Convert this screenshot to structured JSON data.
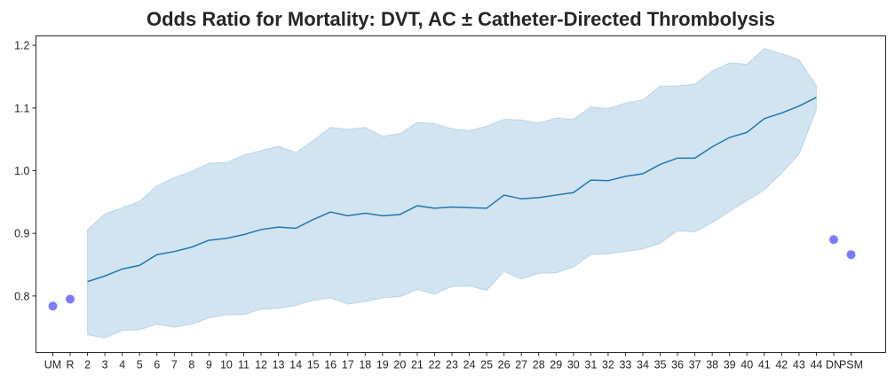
{
  "chart_data": {
    "type": "line",
    "title": "Odds Ratio for Mortality: DVT, AC ± Catheter-Directed Thrombolysis",
    "xlabel": "",
    "ylabel": "",
    "categories": [
      "UM",
      "R",
      "2",
      "3",
      "4",
      "5",
      "6",
      "7",
      "8",
      "9",
      "10",
      "11",
      "12",
      "13",
      "14",
      "15",
      "16",
      "17",
      "18",
      "19",
      "20",
      "21",
      "22",
      "23",
      "24",
      "25",
      "26",
      "27",
      "28",
      "29",
      "30",
      "31",
      "32",
      "33",
      "34",
      "35",
      "36",
      "37",
      "38",
      "39",
      "40",
      "41",
      "42",
      "43",
      "44",
      "DN",
      "PSM"
    ],
    "ylim": [
      0.71,
      1.215
    ],
    "yticks": [
      0.8,
      0.9,
      1.0,
      1.1,
      1.2
    ],
    "ytick_labels": [
      "0.8",
      "0.9",
      "1.0",
      "1.1",
      "1.2"
    ],
    "grid": false,
    "series": [
      {
        "kind": "line_with_band",
        "x": [
          "2",
          "3",
          "4",
          "5",
          "6",
          "7",
          "8",
          "9",
          "10",
          "11",
          "12",
          "13",
          "14",
          "15",
          "16",
          "17",
          "18",
          "19",
          "20",
          "21",
          "22",
          "23",
          "24",
          "25",
          "26",
          "27",
          "28",
          "29",
          "30",
          "31",
          "32",
          "33",
          "34",
          "35",
          "36",
          "37",
          "38",
          "39",
          "40",
          "41",
          "42",
          "43",
          "44"
        ],
        "values": [
          0.823,
          0.832,
          0.843,
          0.849,
          0.866,
          0.871,
          0.878,
          0.889,
          0.892,
          0.898,
          0.906,
          0.91,
          0.908,
          0.922,
          0.934,
          0.928,
          0.932,
          0.928,
          0.93,
          0.944,
          0.94,
          0.942,
          0.941,
          0.94,
          0.961,
          0.955,
          0.957,
          0.961,
          0.965,
          0.985,
          0.984,
          0.991,
          0.995,
          1.01,
          1.02,
          1.02,
          1.038,
          1.053,
          1.061,
          1.083,
          1.092,
          1.103,
          1.117
        ],
        "lower": [
          0.738,
          0.733,
          0.745,
          0.746,
          0.755,
          0.75,
          0.755,
          0.765,
          0.77,
          0.77,
          0.779,
          0.78,
          0.785,
          0.793,
          0.797,
          0.787,
          0.791,
          0.797,
          0.799,
          0.81,
          0.803,
          0.815,
          0.816,
          0.809,
          0.839,
          0.827,
          0.836,
          0.837,
          0.846,
          0.866,
          0.867,
          0.871,
          0.875,
          0.884,
          0.904,
          0.902,
          0.917,
          0.935,
          0.952,
          0.969,
          0.996,
          1.026,
          1.097
        ],
        "upper": [
          0.906,
          0.931,
          0.941,
          0.951,
          0.976,
          0.989,
          0.999,
          1.012,
          1.013,
          1.025,
          1.032,
          1.039,
          1.029,
          1.048,
          1.069,
          1.066,
          1.069,
          1.055,
          1.059,
          1.077,
          1.075,
          1.067,
          1.064,
          1.071,
          1.082,
          1.081,
          1.076,
          1.084,
          1.082,
          1.102,
          1.099,
          1.108,
          1.113,
          1.135,
          1.135,
          1.138,
          1.159,
          1.172,
          1.17,
          1.195,
          1.187,
          1.177,
          1.136
        ]
      },
      {
        "kind": "points",
        "x": [
          "UM",
          "R",
          "DN",
          "PSM"
        ],
        "values": [
          0.784,
          0.795,
          0.89,
          0.866
        ]
      }
    ],
    "colors": {
      "line": "#1f77b4",
      "band": "#1f77b4",
      "points": "#7b7bff"
    }
  }
}
